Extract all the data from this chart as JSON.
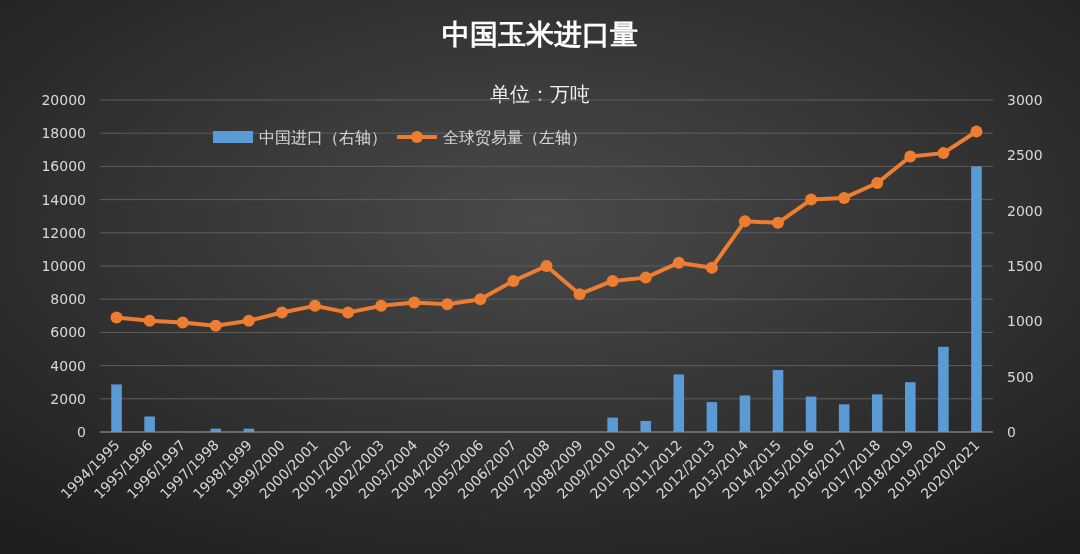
{
  "chart_data": {
    "type": "bar",
    "title": "中国玉米进口量",
    "subtitle": "单位：万吨",
    "categories": [
      "1994/1995",
      "1995/1996",
      "1996/1997",
      "1997/1998",
      "1998/1999",
      "1999/2000",
      "2000/2001",
      "2001/2002",
      "2002/2003",
      "2003/2004",
      "2004/2005",
      "2005/2006",
      "2006/2007",
      "2007/2008",
      "2008/2009",
      "2009/2010",
      "2010/2011",
      "2011/2012",
      "2012/2013",
      "2013/2014",
      "2014/2015",
      "2015/2016",
      "2016/2017",
      "2017/2018",
      "2018/2019",
      "2019/2020",
      "2020/2021"
    ],
    "series": [
      {
        "name": "中国进口（右轴）",
        "axis": "y2",
        "color": "#5b9bd5",
        "values": [
          430,
          140,
          0,
          30,
          30,
          0,
          0,
          0,
          0,
          0,
          0,
          0,
          0,
          0,
          0,
          130,
          100,
          520,
          270,
          330,
          560,
          320,
          250,
          340,
          450,
          770,
          2400
        ]
      },
      {
        "name": "全球贸易量（左轴）",
        "type": "line",
        "color": "#ed7d31",
        "values": [
          6900,
          6700,
          6600,
          6400,
          6700,
          7200,
          7600,
          7200,
          7600,
          7800,
          7700,
          8000,
          9100,
          10000,
          8300,
          9100,
          9300,
          10200,
          9900,
          12700,
          12600,
          14000,
          14100,
          15000,
          16600,
          16800,
          18100
        ]
      }
    ],
    "ylim": [
      0,
      20000
    ],
    "yticks": [
      0,
      2000,
      4000,
      6000,
      8000,
      10000,
      12000,
      14000,
      16000,
      18000,
      20000
    ],
    "y2lim": [
      0,
      3000
    ],
    "y2ticks": [
      0,
      500,
      1000,
      1500,
      2000,
      2500,
      3000
    ],
    "grid": "y",
    "legend": "top",
    "marker": "circle"
  }
}
